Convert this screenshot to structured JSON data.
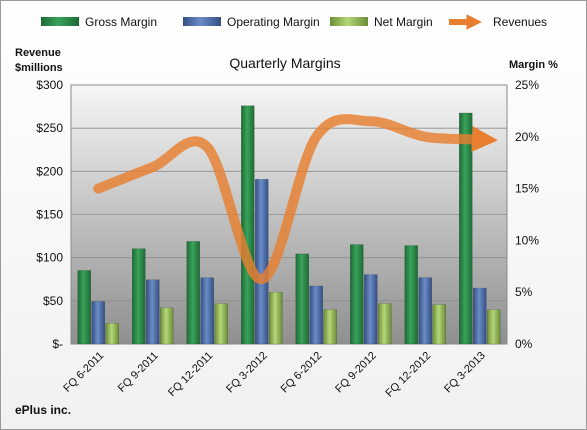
{
  "chart_data": {
    "type": "bar",
    "title": "Quarterly Margins",
    "company": "ePlus inc.",
    "left_axis_title": [
      "Revenue",
      "$millions"
    ],
    "right_axis_title": "Margin %",
    "categories": [
      "FQ 6-2011",
      "FQ 9-2011",
      "FQ 12-2011",
      "FQ 3-2012",
      "FQ 6-2012",
      "FQ 9-2012",
      "FQ 12-2012",
      "FQ 3-2013"
    ],
    "series": [
      {
        "name": "Gross Margin",
        "axis": "right",
        "color": "#2e8b4a",
        "values": [
          7.1,
          9.2,
          9.9,
          23.0,
          8.7,
          9.6,
          9.5,
          22.3
        ]
      },
      {
        "name": "Operating Margin",
        "axis": "right",
        "color": "#4f6fa8",
        "values": [
          4.1,
          6.2,
          6.4,
          15.9,
          5.6,
          6.7,
          6.4,
          5.4
        ]
      },
      {
        "name": "Net Margin",
        "axis": "right",
        "color": "#8fb34f",
        "values": [
          2.0,
          3.5,
          3.9,
          5.0,
          3.3,
          3.9,
          3.8,
          3.3
        ]
      }
    ],
    "line_series": {
      "name": "Revenues",
      "axis": "left",
      "color": "#e87f2f",
      "values": [
        180,
        205,
        228,
        75,
        240,
        258,
        240,
        237
      ]
    },
    "left_axis": {
      "min": 0,
      "max": 300,
      "ticks": [
        "$-",
        "$50",
        "$100",
        "$150",
        "$200",
        "$250",
        "$300"
      ]
    },
    "right_axis": {
      "min": 0,
      "max": 25,
      "ticks": [
        "0%",
        "5%",
        "10%",
        "15%",
        "20%",
        "25%"
      ]
    },
    "grid": true,
    "legend": "top"
  }
}
